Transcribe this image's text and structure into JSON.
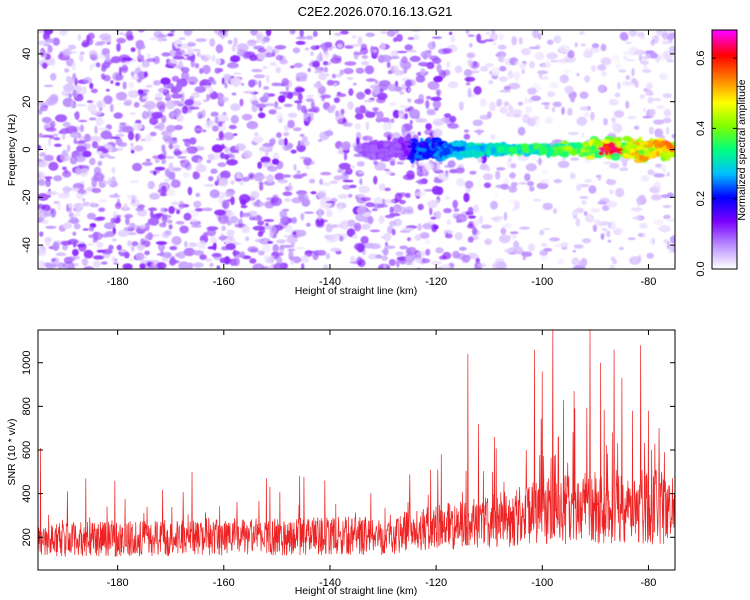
{
  "title": "C2E2.2026.070.16.13.G21",
  "chart_data": [
    {
      "type": "heatmap",
      "xlabel": "Height of straight line (km)",
      "ylabel": "Frequency (Hz)",
      "xlim": [
        -195,
        -75
      ],
      "ylim": [
        -50,
        50
      ],
      "xticks": [
        -180,
        -160,
        -140,
        -120,
        -100,
        -80
      ],
      "yticks": [
        -40,
        -20,
        0,
        20,
        40
      ],
      "colorbar": {
        "label": "Normalized spectral amplitude",
        "range": [
          0.0,
          0.68
        ],
        "ticks": [
          0.0,
          0.2,
          0.4,
          0.6
        ],
        "tick_labels": [
          "0.0",
          "0.2",
          "0.4",
          "0.6"
        ],
        "colormap": [
          "#ffffff",
          "#b98cff",
          "#7a00ff",
          "#0000ff",
          "#00c0ff",
          "#00ff80",
          "#80ff00",
          "#ffff00",
          "#ff8000",
          "#ff0000",
          "#ff00ff"
        ]
      },
      "signal_band": {
        "x_start": -135,
        "x_end": -75,
        "frequency_center": 0,
        "peak_amplitude": 0.68,
        "peak_x": -87
      },
      "noise_level": 0.1
    },
    {
      "type": "line",
      "xlabel": "Height of straight line (km)",
      "ylabel": "SNR (10 * v/v)",
      "xlim": [
        -195,
        -75
      ],
      "ylim": [
        50,
        1150
      ],
      "xticks": [
        -180,
        -160,
        -140,
        -120,
        -100,
        -80
      ],
      "yticks": [
        200,
        400,
        600,
        800,
        1000
      ],
      "series": [
        {
          "color": "#ee2222",
          "baseline_by_x": [
            [
              -195,
              180
            ],
            [
              -160,
              190
            ],
            [
              -130,
              200
            ],
            [
              -120,
              230
            ],
            [
              -110,
              260
            ],
            [
              -100,
              300
            ],
            [
              -90,
              320
            ],
            [
              -80,
              330
            ],
            [
              -75,
              300
            ]
          ],
          "spread_by_x": [
            [
              -195,
              130
            ],
            [
              -160,
              140
            ],
            [
              -130,
              150
            ],
            [
              -110,
              200
            ],
            [
              -100,
              260
            ],
            [
              -80,
              300
            ],
            [
              -75,
              260
            ]
          ],
          "spikes": [
            [
              -194.5,
              610
            ],
            [
              -186,
              470
            ],
            [
              -166,
              500
            ],
            [
              -152,
              470
            ],
            [
              -141,
              460
            ],
            [
              -121,
              510
            ],
            [
              -119,
              580
            ],
            [
              -114,
              1040
            ],
            [
              -112,
              720
            ],
            [
              -109,
              660
            ],
            [
              -103,
              600
            ],
            [
              -101.5,
              1060
            ],
            [
              -100,
              960
            ],
            [
              -98,
              1150
            ],
            [
              -96,
              830
            ],
            [
              -94,
              870
            ],
            [
              -91,
              1150
            ],
            [
              -89,
              1000
            ],
            [
              -86.5,
              1060
            ],
            [
              -85,
              930
            ],
            [
              -83,
              780
            ],
            [
              -81.5,
              1080
            ],
            [
              -80,
              780
            ],
            [
              -78,
              700
            ],
            [
              -77,
              590
            ]
          ]
        }
      ]
    }
  ]
}
